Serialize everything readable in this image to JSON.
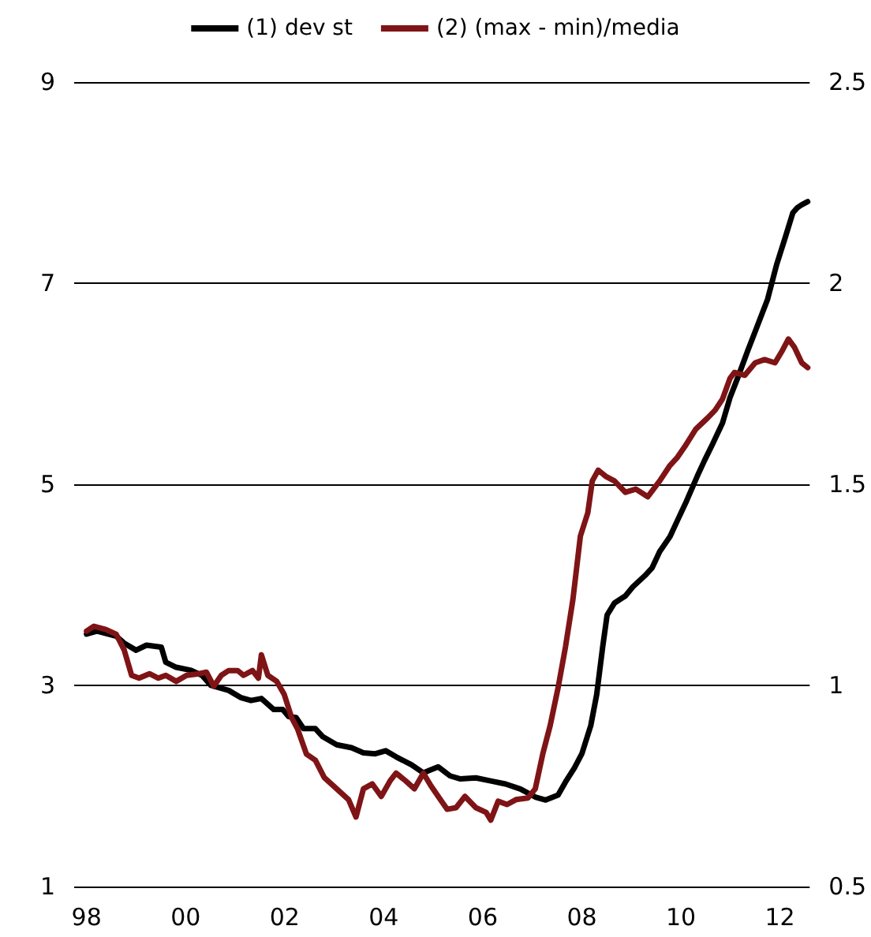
{
  "chart_data": {
    "type": "line",
    "xlim": [
      1997.75,
      2012.6
    ],
    "xticks": [
      {
        "value": 1998,
        "label": "98"
      },
      {
        "value": 2000,
        "label": "00"
      },
      {
        "value": 2002,
        "label": "02"
      },
      {
        "value": 2004,
        "label": "04"
      },
      {
        "value": 2006,
        "label": "06"
      },
      {
        "value": 2008,
        "label": "08"
      },
      {
        "value": 2010,
        "label": "10"
      },
      {
        "value": 2012,
        "label": "12"
      }
    ],
    "ylim": [
      1,
      9
    ],
    "yticks": [
      1,
      3,
      5,
      7,
      9
    ],
    "y2lim": [
      0.5,
      2.5
    ],
    "y2ticks": [
      0.5,
      1,
      1.5,
      2,
      2.5
    ],
    "grid": "y",
    "legend": "top",
    "marker": "none",
    "line_style": "solid",
    "series": [
      {
        "name": "(1) dev st",
        "color": "#000000",
        "x": [
          1998.0,
          1998.21,
          1998.6,
          1998.76,
          1999.0,
          1999.21,
          1999.51,
          1999.6,
          1999.81,
          2000.11,
          2000.33,
          2000.51,
          2000.87,
          2001.11,
          2001.32,
          2001.53,
          2001.78,
          2001.96,
          2002.08,
          2002.23,
          2002.38,
          2002.62,
          2002.77,
          2003.05,
          2003.35,
          2003.59,
          2003.83,
          2004.04,
          2004.25,
          2004.56,
          2004.8,
          2004.95,
          2005.1,
          2005.34,
          2005.55,
          2005.86,
          2006.16,
          2006.46,
          2006.76,
          2007.06,
          2007.27,
          2007.52,
          2007.67,
          2007.85,
          2008.0,
          2008.18,
          2008.3,
          2008.42,
          2008.51,
          2008.66,
          2008.88,
          2009.03,
          2009.27,
          2009.42,
          2009.57,
          2009.78,
          2009.93,
          2010.11,
          2010.33,
          2010.48,
          2010.63,
          2010.84,
          2010.99,
          2011.14,
          2011.35,
          2011.5,
          2011.75,
          2011.93,
          2012.11,
          2012.26,
          2012.35,
          2012.44,
          2012.56
        ],
        "values": [
          3.51,
          3.54,
          3.49,
          3.42,
          3.35,
          3.4,
          3.38,
          3.23,
          3.18,
          3.15,
          3.1,
          3.0,
          2.95,
          2.88,
          2.85,
          2.87,
          2.76,
          2.76,
          2.69,
          2.68,
          2.57,
          2.57,
          2.49,
          2.41,
          2.38,
          2.33,
          2.32,
          2.35,
          2.29,
          2.21,
          2.13,
          2.16,
          2.19,
          2.1,
          2.07,
          2.08,
          2.05,
          2.02,
          1.97,
          1.89,
          1.86,
          1.91,
          2.04,
          2.18,
          2.32,
          2.6,
          2.91,
          3.38,
          3.7,
          3.82,
          3.89,
          3.98,
          4.09,
          4.17,
          4.33,
          4.48,
          4.64,
          4.83,
          5.08,
          5.24,
          5.39,
          5.61,
          5.86,
          6.05,
          6.33,
          6.52,
          6.84,
          7.18,
          7.46,
          7.7,
          7.75,
          7.78,
          7.81
        ]
      },
      {
        "name": "(2) (max - min)/media",
        "color": "#7f1416",
        "axis": "y2",
        "x": [
          1998.0,
          1998.15,
          1998.39,
          1998.6,
          1998.76,
          1998.91,
          1999.06,
          1999.27,
          1999.45,
          1999.6,
          1999.81,
          2000.02,
          2000.27,
          2000.42,
          2000.57,
          2000.72,
          2000.87,
          2001.05,
          2001.17,
          2001.35,
          2001.47,
          2001.53,
          2001.66,
          2001.84,
          2001.99,
          2002.14,
          2002.26,
          2002.44,
          2002.62,
          2002.8,
          2003.05,
          2003.29,
          2003.44,
          2003.59,
          2003.77,
          2003.95,
          2004.13,
          2004.25,
          2004.44,
          2004.62,
          2004.8,
          2004.95,
          2005.1,
          2005.28,
          2005.46,
          2005.64,
          2005.86,
          2006.07,
          2006.16,
          2006.31,
          2006.49,
          2006.67,
          2006.91,
          2007.06,
          2007.21,
          2007.36,
          2007.52,
          2007.67,
          2007.82,
          2007.97,
          2008.12,
          2008.21,
          2008.33,
          2008.48,
          2008.66,
          2008.88,
          2009.09,
          2009.33,
          2009.57,
          2009.78,
          2009.93,
          2010.08,
          2010.3,
          2010.54,
          2010.69,
          2010.84,
          2010.99,
          2011.08,
          2011.29,
          2011.5,
          2011.69,
          2011.9,
          2012.05,
          2012.17,
          2012.29,
          2012.44,
          2012.56
        ],
        "values": [
          1.135,
          1.147,
          1.139,
          1.127,
          1.088,
          1.025,
          1.018,
          1.029,
          1.018,
          1.025,
          1.01,
          1.025,
          1.029,
          1.033,
          0.998,
          1.025,
          1.037,
          1.037,
          1.025,
          1.037,
          1.018,
          1.076,
          1.025,
          1.01,
          0.978,
          0.92,
          0.892,
          0.829,
          0.814,
          0.771,
          0.743,
          0.716,
          0.673,
          0.743,
          0.755,
          0.724,
          0.763,
          0.782,
          0.763,
          0.743,
          0.782,
          0.751,
          0.724,
          0.692,
          0.696,
          0.724,
          0.696,
          0.684,
          0.665,
          0.712,
          0.704,
          0.716,
          0.72,
          0.743,
          0.829,
          0.9,
          0.994,
          1.096,
          1.214,
          1.371,
          1.429,
          1.508,
          1.535,
          1.52,
          1.508,
          1.48,
          1.488,
          1.469,
          1.508,
          1.547,
          1.567,
          1.594,
          1.637,
          1.665,
          1.684,
          1.712,
          1.763,
          1.778,
          1.771,
          1.802,
          1.81,
          1.802,
          1.833,
          1.861,
          1.841,
          1.802,
          1.79
        ]
      }
    ]
  }
}
